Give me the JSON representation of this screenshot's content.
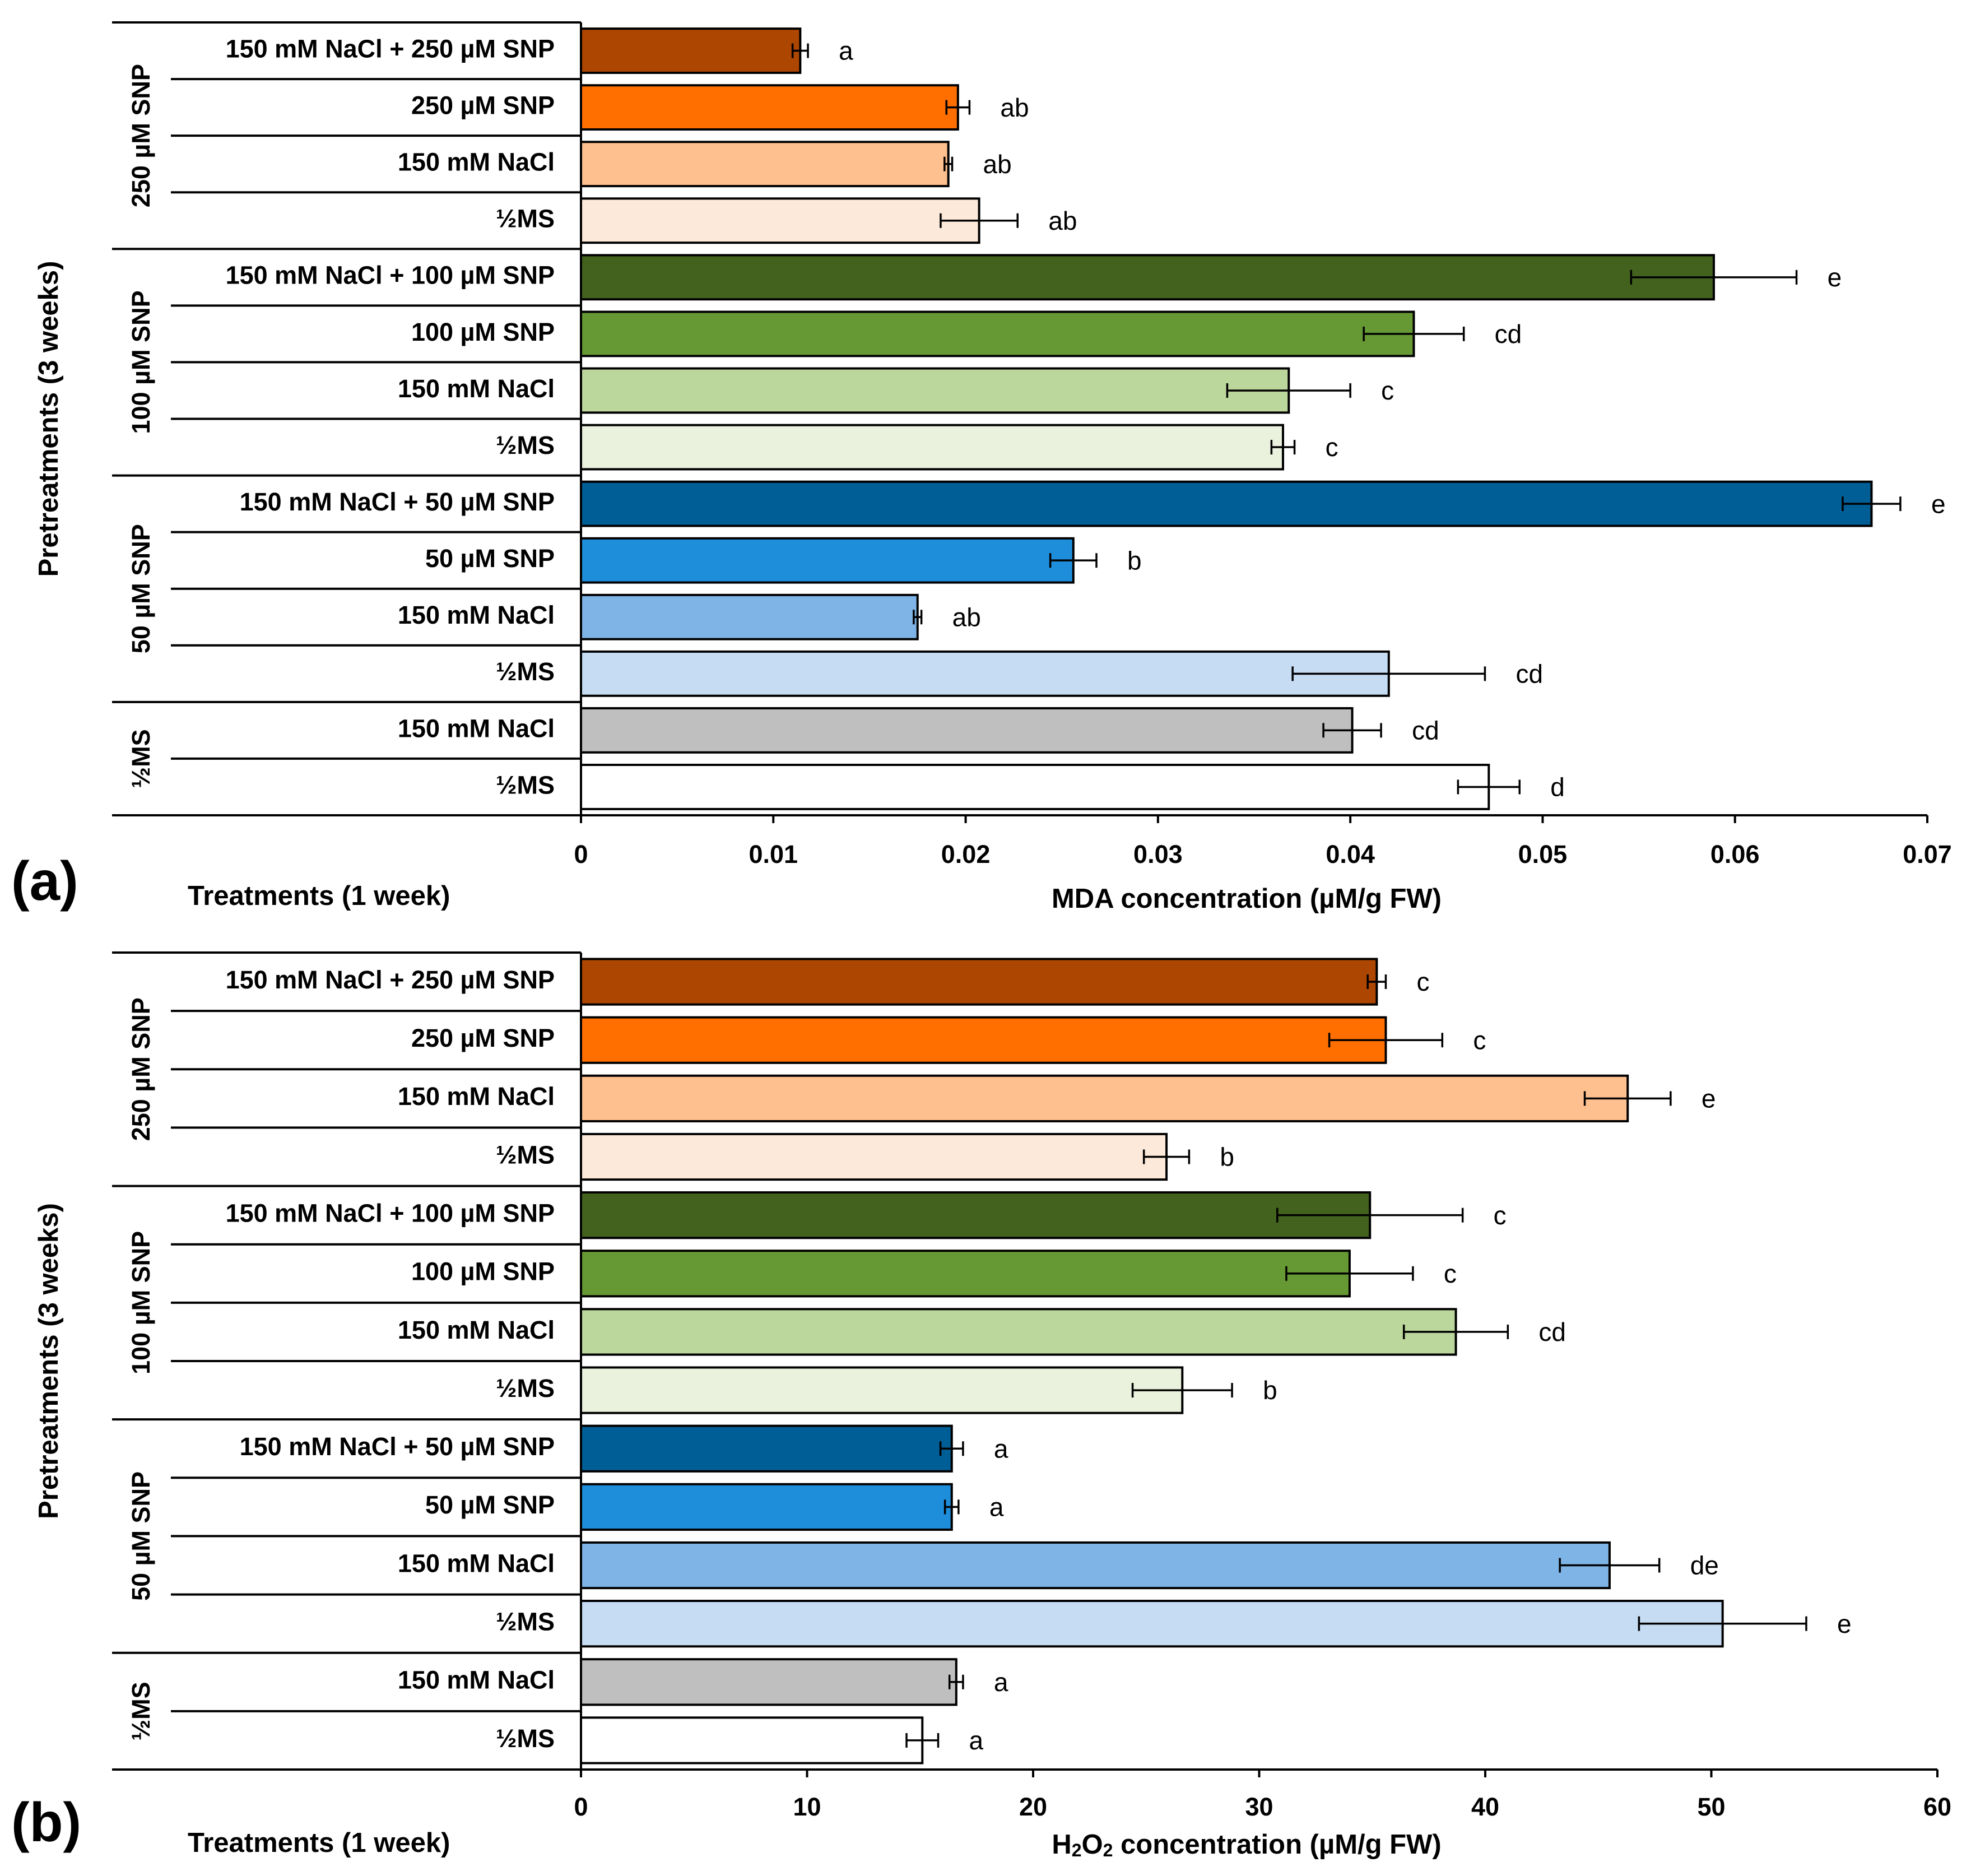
{
  "chart_data": [
    {
      "type": "bar",
      "orientation": "horizontal",
      "panel_label": "(a)",
      "xlabel": "MDA concentration (µM/g FW)",
      "treatments_label": "Treatments (1 week)",
      "ylabel": "Pretreatments (3 weeks)",
      "xlim": [
        0,
        0.07
      ],
      "ticks": [
        "0",
        "0.01",
        "0.02",
        "0.03",
        "0.04",
        "0.05",
        "0.06",
        "0.07"
      ],
      "groups": [
        {
          "label": "250 µM SNP",
          "bars": [
            {
              "label": "150 mM NaCl + 250 µM SNP",
              "value": 0.0114,
              "error": 0.0004,
              "sig": "a",
              "color": "#AD4600"
            },
            {
              "label": "250 µM SNP",
              "value": 0.0196,
              "error": 0.0006,
              "sig": "ab",
              "color": "#FF6F00"
            },
            {
              "label": "150 mM NaCl",
              "value": 0.0191,
              "error": 0.0002,
              "sig": "ab",
              "color": "#FFC08F"
            },
            {
              "label": "½MS",
              "value": 0.0207,
              "error": 0.002,
              "sig": "ab",
              "color": "#FDE9D9"
            }
          ]
        },
        {
          "label": "100 µM SNP",
          "bars": [
            {
              "label": "150 mM NaCl + 100 µM SNP",
              "value": 0.0589,
              "error": 0.0043,
              "sig": "e",
              "color": "#43621E"
            },
            {
              "label": "100 µM SNP",
              "value": 0.0433,
              "error": 0.0026,
              "sig": "cd",
              "color": "#669933"
            },
            {
              "label": "150 mM NaCl",
              "value": 0.0368,
              "error": 0.0032,
              "sig": "c",
              "color": "#BCD79C"
            },
            {
              "label": "½MS",
              "value": 0.0365,
              "error": 0.0006,
              "sig": "c",
              "color": "#EAF2DE"
            }
          ]
        },
        {
          "label": "50 µM SNP",
          "bars": [
            {
              "label": "150 mM NaCl + 50 µM SNP",
              "value": 0.0671,
              "error": 0.0015,
              "sig": "e",
              "color": "#005E96"
            },
            {
              "label": "50 µM SNP",
              "value": 0.0256,
              "error": 0.0012,
              "sig": "b",
              "color": "#1E8DDA"
            },
            {
              "label": "150 mM NaCl",
              "value": 0.0175,
              "error": 0.0002,
              "sig": "ab",
              "color": "#7EB4E6"
            },
            {
              "label": "½MS",
              "value": 0.042,
              "error": 0.005,
              "sig": "cd",
              "color": "#C5DCF3"
            }
          ]
        },
        {
          "label": "½MS",
          "bars": [
            {
              "label": "150 mM NaCl",
              "value": 0.0401,
              "error": 0.0015,
              "sig": "cd",
              "color": "#BFBFBF"
            },
            {
              "label": "½MS",
              "value": 0.0472,
              "error": 0.0016,
              "sig": "d",
              "color": "#FFFFFF"
            }
          ]
        }
      ]
    },
    {
      "type": "bar",
      "orientation": "horizontal",
      "panel_label": "(b)",
      "xlabel_parts": [
        "H",
        "2",
        "O",
        "2",
        " concentration (µM/g FW)"
      ],
      "treatments_label": "Treatments (1 week)",
      "ylabel": "Pretreatments (3 weeks)",
      "xlim": [
        0,
        60
      ],
      "ticks": [
        "0",
        "10",
        "20",
        "30",
        "40",
        "50",
        "60"
      ],
      "groups": [
        {
          "label": "250 µM SNP",
          "bars": [
            {
              "label": "150 mM NaCl + 250 µM SNP",
              "value": 35.2,
              "error": 0.4,
              "sig": "c",
              "color": "#AD4600"
            },
            {
              "label": "250 µM SNP",
              "value": 35.6,
              "error": 2.5,
              "sig": "c",
              "color": "#FF6F00"
            },
            {
              "label": "150 mM NaCl",
              "value": 46.3,
              "error": 1.9,
              "sig": "e",
              "color": "#FFC08F"
            },
            {
              "label": "½MS",
              "value": 25.9,
              "error": 1.0,
              "sig": "b",
              "color": "#FDE9D9"
            }
          ]
        },
        {
          "label": "100 µM SNP",
          "bars": [
            {
              "label": "150 mM NaCl + 100 µM SNP",
              "value": 34.9,
              "error": 4.1,
              "sig": "c",
              "color": "#43621E"
            },
            {
              "label": "100 µM SNP",
              "value": 34.0,
              "error": 2.8,
              "sig": "c",
              "color": "#669933"
            },
            {
              "label": "150 mM NaCl",
              "value": 38.7,
              "error": 2.3,
              "sig": "cd",
              "color": "#BCD79C"
            },
            {
              "label": "½MS",
              "value": 26.6,
              "error": 2.2,
              "sig": "b",
              "color": "#EAF2DE"
            }
          ]
        },
        {
          "label": "50 µM SNP",
          "bars": [
            {
              "label": "150 mM NaCl + 50 µM SNP",
              "value": 16.4,
              "error": 0.5,
              "sig": "a",
              "color": "#005E96"
            },
            {
              "label": "50 µM SNP",
              "value": 16.4,
              "error": 0.3,
              "sig": "a",
              "color": "#1E8DDA"
            },
            {
              "label": "150 mM NaCl",
              "value": 45.5,
              "error": 2.2,
              "sig": "de",
              "color": "#7EB4E6"
            },
            {
              "label": "½MS",
              "value": 50.5,
              "error": 3.7,
              "sig": "e",
              "color": "#C5DCF3"
            }
          ]
        },
        {
          "label": "½MS",
          "bars": [
            {
              "label": "150 mM NaCl",
              "value": 16.6,
              "error": 0.3,
              "sig": "a",
              "color": "#BFBFBF"
            },
            {
              "label": "½MS",
              "value": 15.1,
              "error": 0.7,
              "sig": "a",
              "color": "#FFFFFF"
            }
          ]
        }
      ]
    }
  ]
}
